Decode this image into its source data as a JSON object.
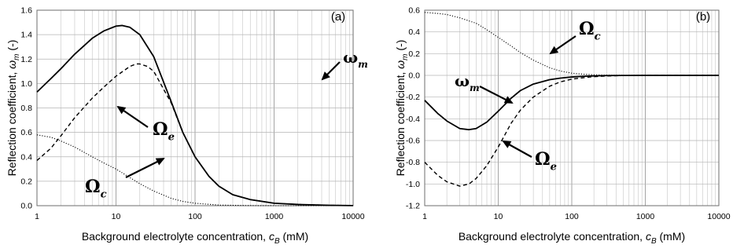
{
  "chart_data": [
    {
      "type": "line",
      "panel_label": "(a)",
      "x_scale": "log",
      "xlim": [
        1,
        10000
      ],
      "ylim": [
        0,
        1.6
      ],
      "x_ticks": [
        "1",
        "10",
        "100",
        "1000",
        "10000"
      ],
      "y_ticks": [
        "0.0",
        "0.2",
        "0.4",
        "0.6",
        "0.8",
        "1.0",
        "1.2",
        "1.4",
        "1.6"
      ],
      "grid": true,
      "xlabel": {
        "main": "Background electrolyte concentration, ",
        "sym": "c",
        "sub": "B",
        "unit": " (mM)"
      },
      "ylabel": {
        "main": "Reflection coefficient, ",
        "sym": "ω",
        "sub": "m",
        "unit": " (-)"
      },
      "series": [
        {
          "name": "ω_m",
          "label_main": "ω",
          "label_sub": "m",
          "style": "solid",
          "x": [
            1,
            1.5,
            2,
            3,
            5,
            7,
            10,
            12,
            15,
            20,
            30,
            50,
            70,
            100,
            150,
            200,
            300,
            500,
            1000,
            2000,
            5000,
            10000
          ],
          "y": [
            0.93,
            1.04,
            1.12,
            1.24,
            1.37,
            1.43,
            1.47,
            1.475,
            1.46,
            1.4,
            1.22,
            0.85,
            0.6,
            0.4,
            0.24,
            0.16,
            0.09,
            0.05,
            0.02,
            0.01,
            0.003,
            0.001
          ]
        },
        {
          "name": "Ω_e",
          "label_main": "Ω",
          "label_sub": "e",
          "style": "dashed",
          "x": [
            1,
            1.5,
            2,
            3,
            5,
            7,
            10,
            15,
            18,
            20,
            25,
            30,
            50,
            70,
            100,
            150,
            200,
            300,
            500,
            1000,
            2000,
            5000,
            10000
          ],
          "y": [
            0.37,
            0.47,
            0.57,
            0.72,
            0.88,
            0.97,
            1.06,
            1.14,
            1.16,
            1.16,
            1.14,
            1.1,
            0.84,
            0.6,
            0.4,
            0.24,
            0.16,
            0.09,
            0.05,
            0.02,
            0.01,
            0.003,
            0.001
          ]
        },
        {
          "name": "Ω_c",
          "label_main": "Ω",
          "label_sub": "c",
          "style": "dotted",
          "x": [
            1,
            1.5,
            2,
            3,
            5,
            7,
            10,
            15,
            20,
            30,
            50,
            70,
            100,
            200,
            500,
            1000,
            10000
          ],
          "y": [
            0.58,
            0.56,
            0.53,
            0.48,
            0.4,
            0.35,
            0.3,
            0.23,
            0.18,
            0.12,
            0.06,
            0.035,
            0.02,
            0.005,
            0.001,
            0.0,
            0.0
          ]
        }
      ]
    },
    {
      "type": "line",
      "panel_label": "(b)",
      "x_scale": "log",
      "xlim": [
        1,
        10000
      ],
      "ylim": [
        -1.2,
        0.6
      ],
      "x_ticks": [
        "1",
        "10",
        "100",
        "1000",
        "10000"
      ],
      "y_ticks": [
        "-1.2",
        "-1.0",
        "-0.8",
        "-0.6",
        "-0.4",
        "-0.2",
        "0.0",
        "0.2",
        "0.4",
        "0.6"
      ],
      "grid": true,
      "xlabel": {
        "main": "Background electrolyte concentration, ",
        "sym": "c",
        "sub": "B",
        "unit": " (mM)"
      },
      "ylabel": {
        "main": "Reflection coefficient, ",
        "sym": "ω",
        "sub": "m",
        "unit": " (-)"
      },
      "series": [
        {
          "name": "ω_m",
          "label_main": "ω",
          "label_sub": "m",
          "style": "solid",
          "x": [
            1,
            1.5,
            2,
            3,
            4,
            5,
            7,
            10,
            15,
            20,
            30,
            50,
            70,
            100,
            150,
            200,
            300,
            500,
            1000,
            10000
          ],
          "y": [
            -0.23,
            -0.35,
            -0.42,
            -0.49,
            -0.5,
            -0.49,
            -0.43,
            -0.33,
            -0.21,
            -0.14,
            -0.08,
            -0.04,
            -0.025,
            -0.015,
            -0.008,
            -0.005,
            -0.002,
            -0.001,
            0.0,
            0.0
          ]
        },
        {
          "name": "Ω_e",
          "label_main": "Ω",
          "label_sub": "e",
          "style": "dashed",
          "x": [
            1,
            1.5,
            2,
            3,
            4,
            5,
            7,
            10,
            15,
            20,
            30,
            50,
            70,
            100,
            150,
            200,
            300,
            500,
            1000,
            10000
          ],
          "y": [
            -0.8,
            -0.92,
            -0.98,
            -1.02,
            -1.0,
            -0.95,
            -0.83,
            -0.66,
            -0.44,
            -0.32,
            -0.2,
            -0.1,
            -0.06,
            -0.035,
            -0.02,
            -0.012,
            -0.006,
            -0.002,
            0.0,
            0.0
          ]
        },
        {
          "name": "Ω_c",
          "label_main": "Ω",
          "label_sub": "c",
          "style": "dotted",
          "x": [
            1,
            1.5,
            2,
            3,
            5,
            7,
            10,
            15,
            20,
            30,
            50,
            70,
            100,
            150,
            200,
            300,
            500,
            1000,
            10000
          ],
          "y": [
            0.58,
            0.57,
            0.56,
            0.53,
            0.48,
            0.42,
            0.35,
            0.27,
            0.21,
            0.14,
            0.07,
            0.04,
            0.02,
            0.01,
            0.005,
            0.002,
            0.001,
            0.0,
            0.0
          ]
        }
      ]
    }
  ]
}
